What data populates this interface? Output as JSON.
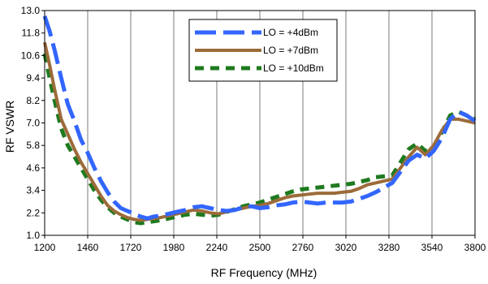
{
  "chart_data": {
    "type": "line",
    "xlabel": "RF Frequency (MHz)",
    "ylabel": "RF VSWR",
    "xlim": [
      1200,
      3800
    ],
    "ylim": [
      1.0,
      13.0
    ],
    "xticks": [
      1200,
      1460,
      1720,
      1980,
      2240,
      2500,
      2760,
      3020,
      3280,
      3540,
      3800
    ],
    "yticks": [
      "1.0",
      "2.2",
      "3.4",
      "4.6",
      "5.8",
      "7.0",
      "8.2",
      "9.4",
      "10.6",
      "11.8",
      "13.0"
    ],
    "grid": "vertical",
    "legend_position": "top-center",
    "series": [
      {
        "name": "LO = +4dBm",
        "color": "#3366FF",
        "style": "dashed",
        "x": [
          1200,
          1230,
          1260,
          1300,
          1340,
          1380,
          1420,
          1460,
          1500,
          1540,
          1580,
          1620,
          1660,
          1700,
          1740,
          1780,
          1820,
          1860,
          1900,
          1950,
          2000,
          2050,
          2100,
          2150,
          2200,
          2250,
          2300,
          2350,
          2400,
          2450,
          2500,
          2550,
          2600,
          2650,
          2700,
          2750,
          2800,
          2850,
          2900,
          2950,
          3000,
          3050,
          3100,
          3150,
          3200,
          3250,
          3300,
          3350,
          3400,
          3450,
          3500,
          3550,
          3600,
          3650,
          3700,
          3750,
          3800
        ],
        "values": [
          12.7,
          11.9,
          10.9,
          9.4,
          8.0,
          7.1,
          6.1,
          5.4,
          4.6,
          3.9,
          3.3,
          2.8,
          2.45,
          2.3,
          2.15,
          2.0,
          1.9,
          2.0,
          2.05,
          2.15,
          2.25,
          2.35,
          2.5,
          2.55,
          2.45,
          2.35,
          2.3,
          2.35,
          2.5,
          2.55,
          2.45,
          2.5,
          2.6,
          2.65,
          2.75,
          2.8,
          2.75,
          2.7,
          2.75,
          2.75,
          2.75,
          2.8,
          2.95,
          3.1,
          3.3,
          3.55,
          3.8,
          4.4,
          5.0,
          5.3,
          5.1,
          5.5,
          6.2,
          7.2,
          7.6,
          7.4,
          7.1
        ]
      },
      {
        "name": "LO = +7dBm",
        "color": "#9C6B3A",
        "style": "solid",
        "x": [
          1200,
          1230,
          1260,
          1300,
          1340,
          1380,
          1420,
          1460,
          1500,
          1540,
          1580,
          1620,
          1660,
          1700,
          1740,
          1780,
          1820,
          1860,
          1900,
          1950,
          2000,
          2050,
          2100,
          2150,
          2200,
          2250,
          2300,
          2350,
          2400,
          2450,
          2500,
          2550,
          2600,
          2650,
          2700,
          2750,
          2800,
          2850,
          2900,
          2950,
          3000,
          3050,
          3100,
          3150,
          3200,
          3250,
          3300,
          3350,
          3400,
          3450,
          3500,
          3550,
          3600,
          3650,
          3700,
          3750,
          3800
        ],
        "values": [
          11.3,
          10.1,
          8.8,
          7.2,
          6.4,
          5.6,
          4.9,
          4.3,
          3.7,
          3.1,
          2.6,
          2.3,
          2.1,
          1.95,
          1.85,
          1.8,
          1.85,
          1.9,
          1.95,
          2.05,
          2.15,
          2.25,
          2.35,
          2.3,
          2.2,
          2.15,
          2.25,
          2.35,
          2.45,
          2.55,
          2.6,
          2.7,
          2.85,
          3.0,
          3.1,
          3.15,
          3.2,
          3.25,
          3.25,
          3.25,
          3.3,
          3.35,
          3.5,
          3.7,
          3.8,
          3.9,
          4.0,
          4.6,
          5.2,
          5.7,
          5.3,
          5.8,
          6.6,
          7.2,
          7.2,
          7.1,
          7.0
        ]
      },
      {
        "name": "LO = +10dBm",
        "color": "#1E7A1E",
        "style": "dashed",
        "x": [
          1200,
          1230,
          1260,
          1300,
          1340,
          1380,
          1420,
          1460,
          1500,
          1540,
          1580,
          1620,
          1660,
          1700,
          1740,
          1780,
          1820,
          1860,
          1900,
          1950,
          2000,
          2050,
          2100,
          2150,
          2200,
          2250,
          2300,
          2350,
          2400,
          2450,
          2500,
          2550,
          2600,
          2650,
          2700,
          2750,
          2800,
          2850,
          2900,
          2950,
          3000,
          3050,
          3100,
          3150,
          3200,
          3250,
          3300,
          3350,
          3400,
          3450,
          3500,
          3550,
          3600,
          3650,
          3700,
          3750,
          3800
        ],
        "values": [
          10.7,
          9.4,
          8.2,
          6.7,
          5.8,
          5.2,
          4.6,
          4.0,
          3.4,
          2.9,
          2.5,
          2.2,
          2.0,
          1.85,
          1.7,
          1.65,
          1.7,
          1.75,
          1.8,
          1.9,
          2.0,
          2.1,
          2.15,
          2.1,
          2.05,
          2.1,
          2.25,
          2.4,
          2.55,
          2.65,
          2.75,
          2.9,
          3.05,
          3.2,
          3.35,
          3.45,
          3.5,
          3.55,
          3.6,
          3.65,
          3.7,
          3.75,
          3.85,
          3.95,
          4.1,
          4.15,
          4.2,
          4.9,
          5.6,
          5.9,
          5.5,
          5.7,
          6.5,
          7.4,
          7.6,
          7.4,
          7.2
        ]
      }
    ]
  }
}
